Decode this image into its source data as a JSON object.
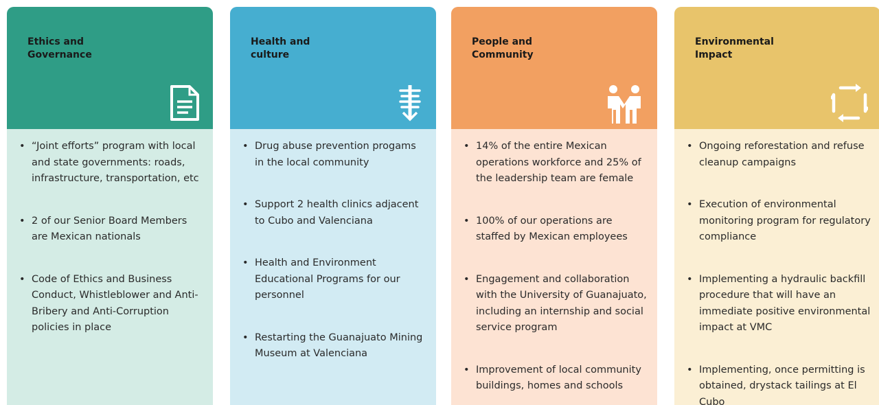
{
  "cards": [
    {
      "title": [
        "Ethics and",
        "Governance"
      ],
      "bullets": [
        "“Joint efforts” program with local and state governments: roads, infrastructure, transportation, etc",
        "2 of our Senior Board Members are Mexican nationals",
        "Code of Ethics and Business Conduct, Whistleblower and Anti-Bribery and Anti-Corruption policies in place"
      ]
    },
    {
      "title": [
        "Health and",
        "culture"
      ],
      "bullets": [
        "Drug abuse prevention progams in the local community",
        "Support 2 health clinics adjacent to Cubo and Valenciana",
        "Health and Environment Educational Programs for our personnel",
        "Restarting the Guanajuato Mining Museum at Valenciana"
      ]
    },
    {
      "title": [
        "People and",
        "Community"
      ],
      "bullets": [
        "14% of the entire Mexican operations workforce and 25% of the leadership team are female",
        "100% of our operations are staffed by Mexican employees",
        "Engagement and collaboration with the University of Guanajuato, including an internship and social service program",
        "Improvement of local community buildings, homes and schools"
      ]
    },
    {
      "title": [
        "Environmental",
        "Impact"
      ],
      "bullets": [
        "Ongoing reforestation and refuse cleanup campaigns",
        "Execution of environmental monitoring program for regulatory compliance",
        "Implementing a hydraulic backfill procedure that will have an immediate positive environmental impact at VMC",
        "Implementing, once permitting is obtained, drystack tailings at El Cubo"
      ]
    }
  ]
}
